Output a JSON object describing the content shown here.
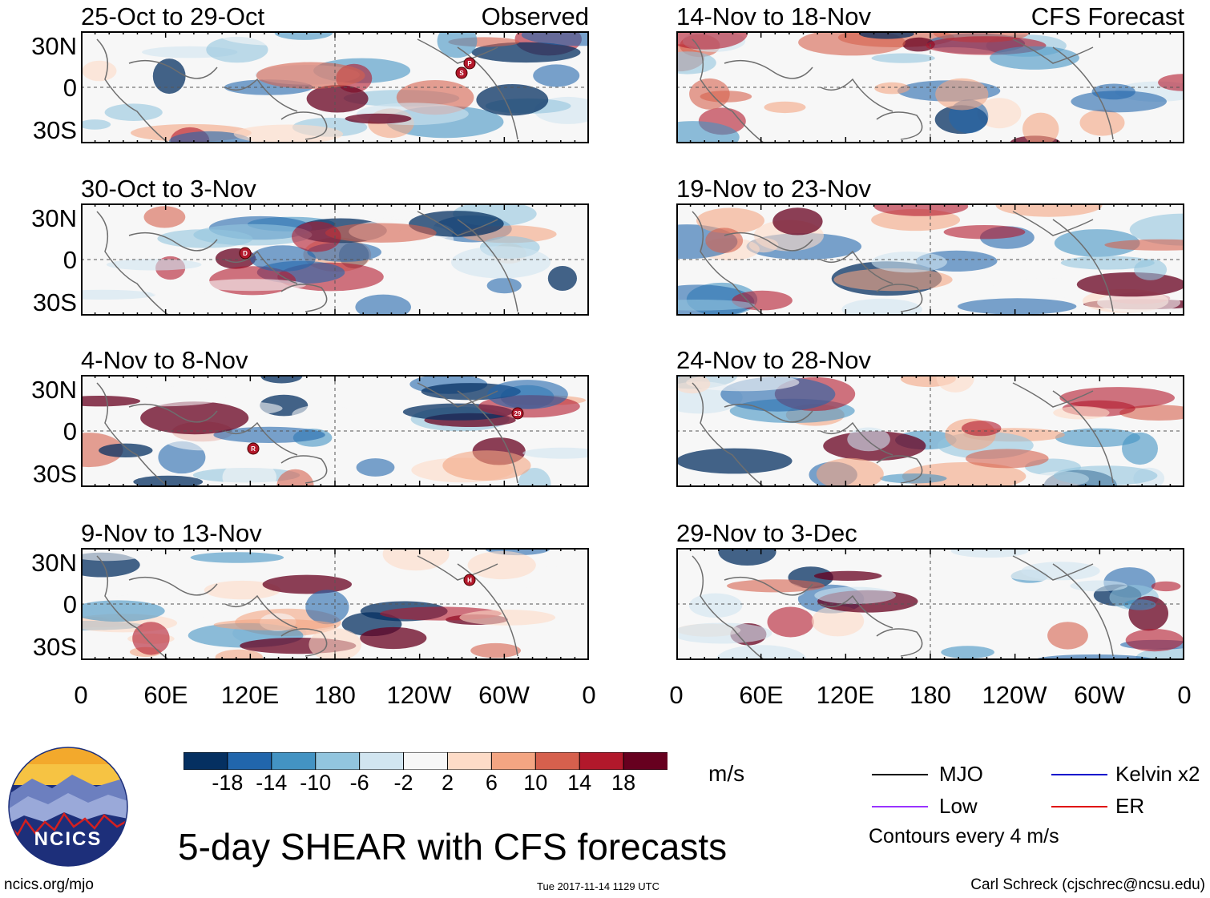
{
  "figure": {
    "title": "5-day SHEAR with CFS forecasts",
    "observed_label": "Observed",
    "forecast_label": "CFS Forecast",
    "site": "ncics.org/mjo",
    "timestamp": "Tue 2017-11-14 1129 UTC",
    "author": "Carl Schreck (cjschrec@ncsu.edu)",
    "logo_text": "NCICS"
  },
  "axes": {
    "lat_labels": [
      "30N",
      "0",
      "30S"
    ],
    "lon_labels": [
      "0",
      "60E",
      "120E",
      "180",
      "120W",
      "60W",
      "0"
    ]
  },
  "panels": {
    "observed": [
      {
        "period": "25-Oct to 29-Oct",
        "storms": [
          "P",
          "S"
        ]
      },
      {
        "period": "30-Oct to 3-Nov",
        "storms": [
          "D"
        ]
      },
      {
        "period": "4-Nov to 8-Nov",
        "storms": [
          "29",
          "R"
        ]
      },
      {
        "period": "9-Nov to 13-Nov",
        "storms": [
          "H"
        ]
      }
    ],
    "forecast": [
      {
        "period": "14-Nov to 18-Nov"
      },
      {
        "period": "19-Nov to 23-Nov"
      },
      {
        "period": "24-Nov to 28-Nov"
      },
      {
        "period": "29-Nov to 3-Dec"
      }
    ]
  },
  "colorbar": {
    "units": "m/s",
    "ticks": [
      "-18",
      "-14",
      "-10",
      "-6",
      "-2",
      "2",
      "6",
      "10",
      "14",
      "18"
    ],
    "colors": [
      "#053061",
      "#2166ac",
      "#4393c3",
      "#92c5de",
      "#d1e5f0",
      "#f7f7f7",
      "#fddbc7",
      "#f4a582",
      "#d6604d",
      "#b2182b",
      "#67001f"
    ]
  },
  "legend": {
    "items": [
      {
        "label": "MJO",
        "color": "#000000"
      },
      {
        "label": "Kelvin x2",
        "color": "#0000cc"
      },
      {
        "label": "Low",
        "color": "#9933ff"
      },
      {
        "label": "ER",
        "color": "#e00000"
      }
    ],
    "note": "Contours every 4 m/s"
  }
}
